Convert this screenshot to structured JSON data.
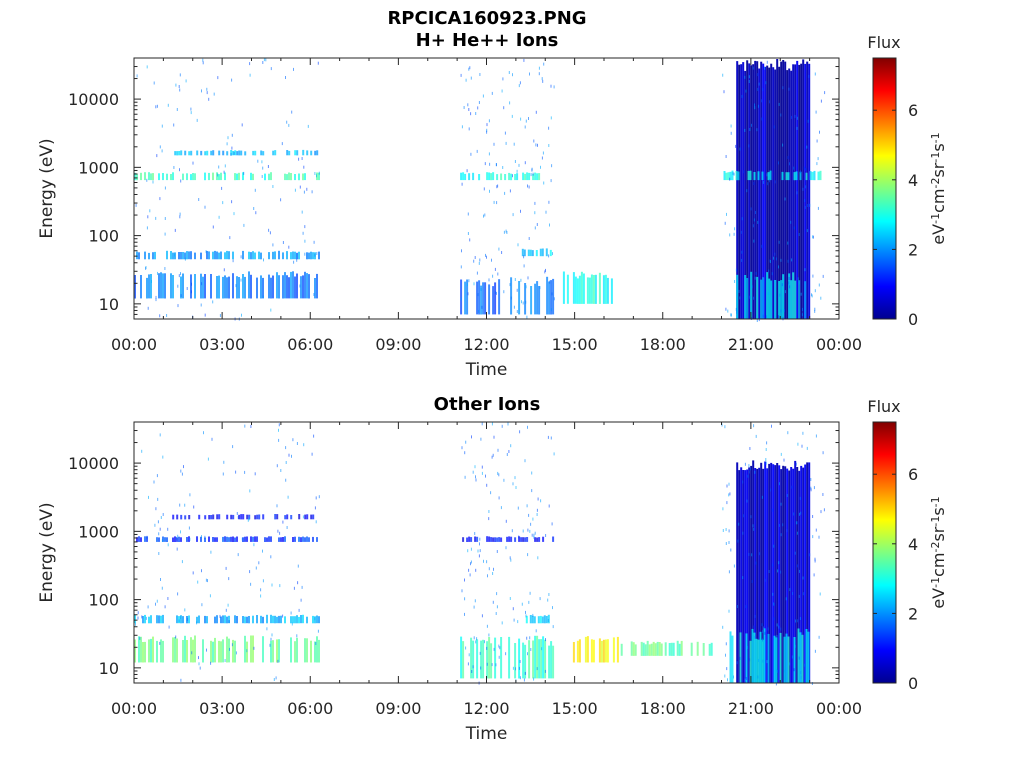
{
  "figure": {
    "title": "RPCICA160923.PNG",
    "colorbar": {
      "label": "Flux",
      "unit_base": [
        "eV",
        "cm",
        "sr",
        "s"
      ],
      "unit_exp": [
        "-1",
        "-2",
        "-1",
        "-1"
      ],
      "ticks": [
        "0",
        "2",
        "4",
        "6"
      ],
      "range": [
        0,
        7.5
      ],
      "colormap": "jet"
    }
  },
  "chart_data": [
    {
      "type": "heatmap",
      "title": "H+ He++ Ions",
      "xlabel": "Time",
      "ylabel": "Energy (eV)",
      "x_ticks": [
        "00:00",
        "03:00",
        "06:00",
        "09:00",
        "12:00",
        "15:00",
        "18:00",
        "21:00",
        "00:00"
      ],
      "x_range_hours": [
        0,
        24
      ],
      "y_scale": "log",
      "y_ticks": [
        "10",
        "100",
        "1000",
        "10000"
      ],
      "y_range": [
        6,
        40000
      ],
      "regions": [
        {
          "t": [
            0,
            6.3
          ],
          "e": [
            12,
            30
          ],
          "flux": 1.8
        },
        {
          "t": [
            0,
            6.3
          ],
          "e": [
            45,
            60
          ],
          "flux": 2.0
        },
        {
          "t": [
            0,
            6.3
          ],
          "e": [
            650,
            850
          ],
          "flux": 3.2
        },
        {
          "t": [
            1.3,
            6.3
          ],
          "e": [
            1500,
            1800
          ],
          "flux": 2.3
        },
        {
          "t": [
            11.1,
            14.3
          ],
          "e": [
            7,
            25
          ],
          "flux": 1.7
        },
        {
          "t": [
            11.1,
            14.3
          ],
          "e": [
            650,
            850
          ],
          "flux": 3.0
        },
        {
          "t": [
            13.2,
            14.2
          ],
          "e": [
            50,
            65
          ],
          "flux": 2.5
        },
        {
          "t": [
            14.6,
            16.3
          ],
          "e": [
            10,
            30
          ],
          "flux": 3.0
        },
        {
          "t": [
            20.5,
            23.0
          ],
          "e": [
            6,
            40000
          ],
          "flux": 0.5
        },
        {
          "t": [
            20.5,
            23.0
          ],
          "e": [
            6,
            30
          ],
          "flux": 2.6
        },
        {
          "t": [
            20.0,
            23.5
          ],
          "e": [
            650,
            900
          ],
          "flux": 2.8
        }
      ]
    },
    {
      "type": "heatmap",
      "title": "Other Ions",
      "xlabel": "Time",
      "ylabel": "Energy (eV)",
      "x_ticks": [
        "00:00",
        "03:00",
        "06:00",
        "09:00",
        "12:00",
        "15:00",
        "18:00",
        "21:00",
        "00:00"
      ],
      "x_range_hours": [
        0,
        24
      ],
      "y_scale": "log",
      "y_ticks": [
        "10",
        "100",
        "1000",
        "10000"
      ],
      "y_range": [
        6,
        40000
      ],
      "regions": [
        {
          "t": [
            0,
            6.3
          ],
          "e": [
            12,
            30
          ],
          "flux": 3.6
        },
        {
          "t": [
            0,
            6.3
          ],
          "e": [
            45,
            60
          ],
          "flux": 2.2
        },
        {
          "t": [
            0,
            6.3
          ],
          "e": [
            700,
            850
          ],
          "flux": 1.3
        },
        {
          "t": [
            1.3,
            6.3
          ],
          "e": [
            1500,
            1800
          ],
          "flux": 1.0
        },
        {
          "t": [
            11.1,
            14.3
          ],
          "e": [
            7,
            30
          ],
          "flux": 3.2
        },
        {
          "t": [
            11.1,
            14.3
          ],
          "e": [
            700,
            850
          ],
          "flux": 1.0
        },
        {
          "t": [
            13.2,
            14.2
          ],
          "e": [
            45,
            60
          ],
          "flux": 2.6
        },
        {
          "t": [
            14.6,
            16.5
          ],
          "e": [
            12,
            30
          ],
          "flux": 4.7
        },
        {
          "t": [
            16.5,
            19.7
          ],
          "e": [
            15,
            25
          ],
          "flux": 3.5
        },
        {
          "t": [
            20.5,
            23.0
          ],
          "e": [
            6,
            11000
          ],
          "flux": 0.6
        },
        {
          "t": [
            20.0,
            23.5
          ],
          "e": [
            6,
            40
          ],
          "flux": 2.8
        }
      ]
    }
  ]
}
